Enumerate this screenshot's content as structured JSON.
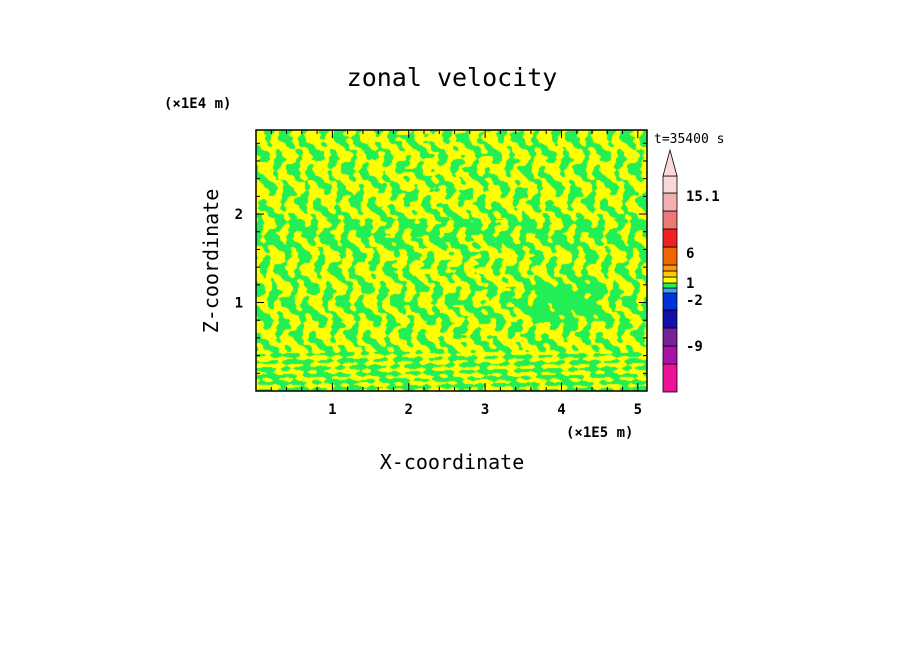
{
  "chart_data": {
    "type": "heatmap",
    "title": "zonal velocity",
    "xlabel": "X-coordinate",
    "ylabel": "Z-coordinate",
    "x_scale_label": "(×1E5 m)",
    "y_scale_label": "(×1E4 m)",
    "time_label": "t=35400 s",
    "xlim": [
      0,
      5.12
    ],
    "ylim": [
      0,
      2.95
    ],
    "x_ticks": [
      "1",
      "2",
      "3",
      "4",
      "5"
    ],
    "y_ticks": [
      "1",
      "2"
    ],
    "colors": {
      "dominant_low": "#22ee55",
      "dominant_high": "#ffff00"
    },
    "colorbar": {
      "labels": [
        "15.1",
        "6",
        "1",
        "-2",
        "-9"
      ],
      "bins": [
        {
          "color": "#ee1199"
        },
        {
          "color": "#aa11aa"
        },
        {
          "color": "#772299"
        },
        {
          "color": "#1111aa"
        },
        {
          "color": "#0033dd"
        },
        {
          "color": "#33aaee"
        },
        {
          "color": "#22ee55"
        },
        {
          "color": "#ffff00"
        },
        {
          "color": "#ffcc00"
        },
        {
          "color": "#ff9900"
        },
        {
          "color": "#ee6600"
        },
        {
          "color": "#ee2222"
        },
        {
          "color": "#ee7777"
        },
        {
          "color": "#f4b0b0"
        },
        {
          "color": "#f8d8d8"
        }
      ]
    }
  }
}
